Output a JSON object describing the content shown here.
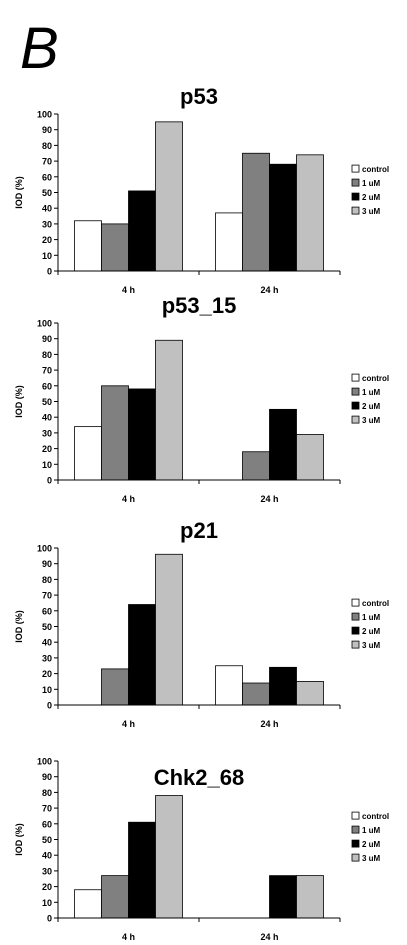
{
  "panel_label": "B",
  "colors": {
    "control": "#ffffff",
    "1uM": "#808080",
    "2uM": "#000000",
    "3uM": "#c0c0c0",
    "axis": "#000000"
  },
  "chart_data": [
    {
      "type": "bar",
      "title": "p53",
      "ylabel": "IOD (%)",
      "xlabel": "",
      "ylim": [
        0,
        100
      ],
      "yticks": [
        0,
        10,
        20,
        30,
        40,
        50,
        60,
        70,
        80,
        90,
        100
      ],
      "categories": [
        "4 h",
        "24 h"
      ],
      "legend_position": "right",
      "series": [
        {
          "name": "control",
          "values": [
            32,
            37
          ]
        },
        {
          "name": "1 uM",
          "values": [
            30,
            75
          ]
        },
        {
          "name": "2 uM",
          "values": [
            51,
            68
          ]
        },
        {
          "name": "3 uM",
          "values": [
            95,
            74
          ]
        }
      ]
    },
    {
      "type": "bar",
      "title": "p53_15",
      "ylabel": "IOD (%)",
      "xlabel": "",
      "ylim": [
        0,
        100
      ],
      "yticks": [
        0,
        10,
        20,
        30,
        40,
        50,
        60,
        70,
        80,
        90,
        100
      ],
      "categories": [
        "4 h",
        "24 h"
      ],
      "legend_position": "right",
      "series": [
        {
          "name": "control",
          "values": [
            34,
            0
          ]
        },
        {
          "name": "1 uM",
          "values": [
            60,
            18
          ]
        },
        {
          "name": "2 uM",
          "values": [
            58,
            45
          ]
        },
        {
          "name": "3 uM",
          "values": [
            89,
            29
          ]
        }
      ]
    },
    {
      "type": "bar",
      "title": "p21",
      "ylabel": "IOD (%)",
      "xlabel": "",
      "ylim": [
        0,
        100
      ],
      "yticks": [
        0,
        10,
        20,
        30,
        40,
        50,
        60,
        70,
        80,
        90,
        100
      ],
      "categories": [
        "4 h",
        "24 h"
      ],
      "legend_position": "right",
      "series": [
        {
          "name": "control",
          "values": [
            0,
            25
          ]
        },
        {
          "name": "1 uM",
          "values": [
            23,
            14
          ]
        },
        {
          "name": "2 uM",
          "values": [
            64,
            24
          ]
        },
        {
          "name": "3 uM",
          "values": [
            96,
            15
          ]
        }
      ]
    },
    {
      "type": "bar",
      "title": "Chk2_68",
      "ylabel": "IOD (%)",
      "xlabel": "",
      "ylim": [
        0,
        100
      ],
      "yticks": [
        0,
        10,
        20,
        30,
        40,
        50,
        60,
        70,
        80,
        90,
        100
      ],
      "categories": [
        "4 h",
        "24 h"
      ],
      "legend_position": "right",
      "series": [
        {
          "name": "control",
          "values": [
            18,
            0
          ]
        },
        {
          "name": "1 uM",
          "values": [
            27,
            0
          ]
        },
        {
          "name": "2 uM",
          "values": [
            61,
            27
          ]
        },
        {
          "name": "3 uM",
          "values": [
            78,
            27
          ]
        }
      ]
    }
  ]
}
